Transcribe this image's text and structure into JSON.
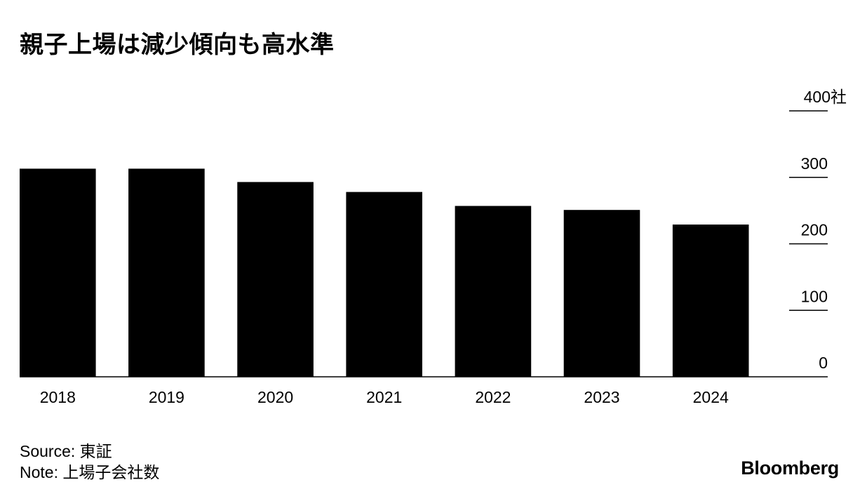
{
  "chart_data": {
    "type": "bar",
    "title": "親子上場は減少傾向も高水準",
    "categories": [
      "2018",
      "2019",
      "2020",
      "2021",
      "2022",
      "2023",
      "2024"
    ],
    "values": [
      313,
      313,
      293,
      278,
      257,
      251,
      229
    ],
    "ylim": [
      0,
      400
    ],
    "yticks": [
      0,
      100,
      200,
      300,
      400
    ],
    "y_unit_suffix": "社",
    "xlabel": "",
    "ylabel": "",
    "grid": false,
    "y_axis_position": "right",
    "bar_color": "#000000"
  },
  "footer": {
    "source": "Source: 東証",
    "note": "Note: 上場子会社数"
  },
  "brand": "Bloomberg"
}
